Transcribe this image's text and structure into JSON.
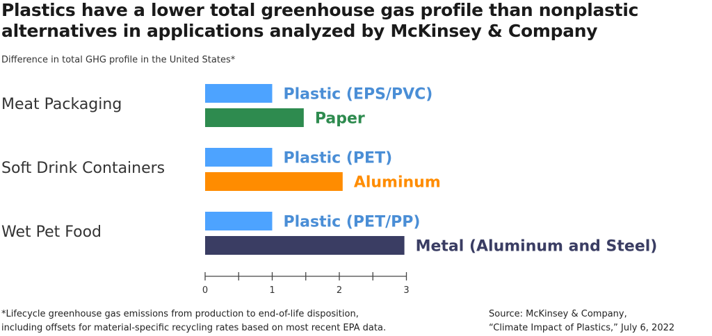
{
  "title": "Plastics have a lower total greenhouse gas profile than nonplastic alternatives in applications analyzed by McKinsey & Company",
  "subtitle": "Difference in total GHG profile in the United States*",
  "footnote_line1": "*Lifecycle greenhouse gas emissions from production to end-of-life disposition,",
  "footnote_line2": "including offsets for material-specific recycling rates based on most recent EPA data.",
  "source_line1": "Source: McKinsey & Company,",
  "source_line2": "“Climate Impact of Plastics,” July 6, 2022",
  "chart_data": {
    "type": "bar",
    "orientation": "horizontal",
    "xlim": [
      0,
      3
    ],
    "x_ticks": [
      "0",
      "1",
      "2",
      "3"
    ],
    "groups": [
      {
        "category": "Meat Packaging",
        "bars": [
          {
            "label": "Plastic (EPS/PVC)",
            "value": 1.0,
            "color": "#4da3ff"
          },
          {
            "label": "Paper",
            "value": 1.47,
            "color": "#2e8b4f"
          }
        ]
      },
      {
        "category": "Soft Drink Containers",
        "bars": [
          {
            "label": "Plastic (PET)",
            "value": 1.0,
            "color": "#4da3ff"
          },
          {
            "label": "Aluminum",
            "value": 2.05,
            "color": "#ff8c00"
          }
        ]
      },
      {
        "category": "Wet Pet Food",
        "bars": [
          {
            "label": "Plastic (PET/PP)",
            "value": 1.0,
            "color": "#4da3ff"
          },
          {
            "label": "Metal (Aluminum and Steel)",
            "value": 2.97,
            "color": "#3a3d63"
          }
        ]
      }
    ],
    "label_colors": {
      "plastic": "#4a8ed6",
      "paper": "#2e8b4f",
      "aluminum": "#ff8c00",
      "metal": "#3a3d63"
    }
  }
}
